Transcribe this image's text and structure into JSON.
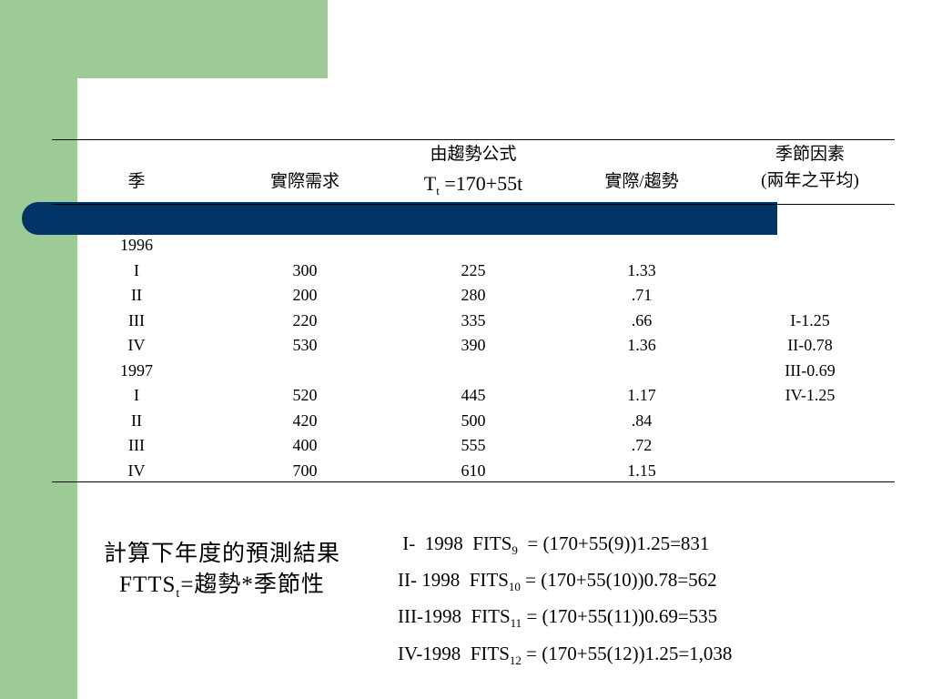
{
  "table": {
    "headers": {
      "season": "季",
      "actual": "實際需求",
      "trend_title": "由趨勢公式",
      "trend_formula_T": "T",
      "trend_formula_sub": "t",
      "trend_formula_rest": " =170+55t",
      "ratio": "實際/趨勢",
      "seasonal_line1": "季節因素",
      "seasonal_line2": "(兩年之平均)"
    },
    "season_col": [
      "1996",
      "I",
      "II",
      "III",
      "IV",
      "1997",
      "I",
      "II",
      "III",
      "IV"
    ],
    "actual_col": [
      "",
      "300",
      "200",
      "220",
      "530",
      "",
      "520",
      "420",
      "400",
      "700"
    ],
    "trend_col": [
      "",
      "225",
      "280",
      "335",
      "390",
      "",
      "445",
      "500",
      "555",
      "610"
    ],
    "ratio_col": [
      "",
      "1.33",
      ".71",
      ".66",
      "1.36",
      "",
      "1.17",
      ".84",
      ".72",
      "1.15"
    ],
    "seasonal_col": [
      "",
      "",
      "",
      "I-1.25",
      "II-0.78",
      "III-0.69",
      "IV-1.25",
      "",
      "",
      ""
    ]
  },
  "note": {
    "line1": "計算下年度的預測結果",
    "line2_a": "FTTS",
    "line2_sub": "t",
    "line2_b": "=趨勢*季節性"
  },
  "formulas": [
    {
      "prefix": " I-  1998  FITS",
      "sub": "9",
      "rest": "  = (170+55(9))1.25=831"
    },
    {
      "prefix": "II- 1998  FITS",
      "sub": "10",
      "rest": " = (170+55(10))0.78=562"
    },
    {
      "prefix": "III-1998  FITS",
      "sub": "11",
      "rest": " = (170+55(11))0.69=535"
    },
    {
      "prefix": "IV-1998  FITS",
      "sub": "12",
      "rest": " = (170+55(12))1.25=1,038"
    }
  ],
  "colors": {
    "green": "#9ccb95",
    "navy": "#003366"
  }
}
